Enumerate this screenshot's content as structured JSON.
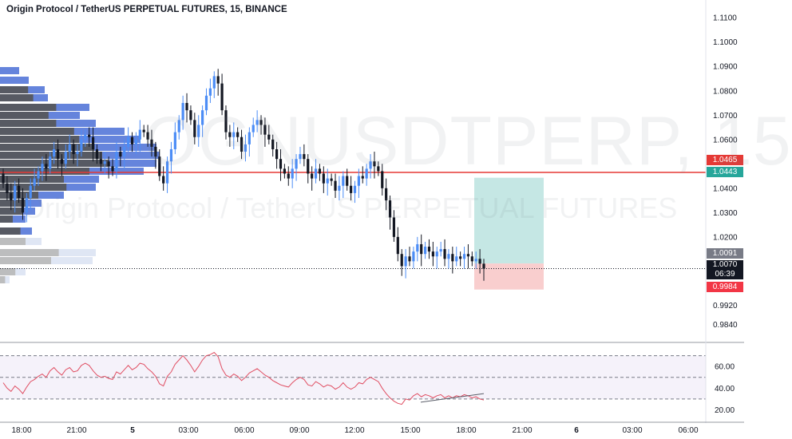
{
  "header": {
    "title": "Origin Protocol / TetherUS PERPETUAL FUTURES, 15, BINANCE"
  },
  "watermark": {
    "symbol": "OGNUSDTPERP, 15",
    "name": "Origin Protocol / TetherUS PERPETUAL FUTURES"
  },
  "colors": {
    "up_candle": "#4c8df6",
    "down_candle": "#131722",
    "resistance_line": "#e53935",
    "profit_zone": "#b2dfdb",
    "loss_zone": "#f8c6c6",
    "rsi_line": "#e04e62",
    "volume_profile_blue": "#4a6fd6",
    "volume_profile_grey": "#555555"
  },
  "price_axis": {
    "ticks": [
      "1.1100",
      "1.1000",
      "1.0900",
      "1.0800",
      "1.0700",
      "1.0600",
      "1.0400",
      "1.0300",
      "1.0200",
      "0.9920",
      "0.9840"
    ],
    "labels": {
      "resistance": {
        "value": "1.0465",
        "color": "#e53935"
      },
      "target": {
        "value": "1.0443",
        "color": "#26a69a"
      },
      "entry": {
        "value": "1.0091",
        "color": "#787b86"
      },
      "last": {
        "value": "1.0070",
        "countdown": "06:39",
        "color": "#131722"
      },
      "stop": {
        "value": "0.9984",
        "color": "#f23645"
      }
    }
  },
  "time_axis": {
    "ticks": [
      "18:00",
      "21:00",
      "5",
      "03:00",
      "06:00",
      "09:00",
      "12:00",
      "15:00",
      "18:00",
      "21:00",
      "6",
      "03:00",
      "06:00"
    ]
  },
  "rsi": {
    "ticks": [
      "60.00",
      "40.00",
      "20.00"
    ],
    "upper": 70,
    "middle": 50,
    "lower": 30
  },
  "chart_data": {
    "type": "candlestick",
    "symbol": "OGNUSDTPERP",
    "interval": "15",
    "exchange": "BINANCE",
    "ylim": [
      0.978,
      1.114
    ],
    "close_series": [
      1.042,
      1.038,
      1.035,
      1.041,
      1.036,
      1.03,
      1.036,
      1.041,
      1.044,
      1.047,
      1.05,
      1.048,
      1.053,
      1.056,
      1.052,
      1.05,
      1.055,
      1.058,
      1.054,
      1.055,
      1.06,
      1.062,
      1.061,
      1.056,
      1.052,
      1.05,
      1.051,
      1.049,
      1.047,
      1.055,
      1.053,
      1.057,
      1.061,
      1.058,
      1.06,
      1.064,
      1.063,
      1.06,
      1.057,
      1.053,
      1.045,
      1.042,
      1.051,
      1.056,
      1.063,
      1.068,
      1.075,
      1.072,
      1.068,
      1.061,
      1.066,
      1.072,
      1.078,
      1.081,
      1.086,
      1.083,
      1.072,
      1.063,
      1.061,
      1.063,
      1.061,
      1.055,
      1.058,
      1.063,
      1.066,
      1.068,
      1.066,
      1.062,
      1.06,
      1.056,
      1.052,
      1.048,
      1.046,
      1.044,
      1.048,
      1.052,
      1.054,
      1.052,
      1.046,
      1.044,
      1.048,
      1.046,
      1.042,
      1.044,
      1.043,
      1.039,
      1.041,
      1.045,
      1.041,
      1.038,
      1.041,
      1.045,
      1.044,
      1.048,
      1.051,
      1.049,
      1.047,
      1.04,
      1.035,
      1.028,
      1.02,
      1.013,
      1.008,
      1.012,
      1.01,
      1.014,
      1.017,
      1.013,
      1.016,
      1.014,
      1.012,
      1.014,
      1.015,
      1.011,
      1.013,
      1.01,
      1.012,
      1.011,
      1.013,
      1.012,
      1.01,
      1.011,
      1.009,
      1.007
    ],
    "levels": {
      "resistance": 1.0465,
      "target": 1.0443,
      "entry": 1.0091,
      "last": 1.007,
      "stop": 0.9984
    },
    "rsi_series": [
      45,
      40,
      37,
      42,
      39,
      35,
      41,
      46,
      48,
      51,
      53,
      50,
      56,
      59,
      55,
      52,
      57,
      59,
      55,
      56,
      61,
      63,
      61,
      56,
      52,
      50,
      51,
      49,
      48,
      55,
      53,
      57,
      61,
      57,
      59,
      63,
      62,
      58,
      55,
      51,
      44,
      42,
      51,
      55,
      62,
      66,
      70,
      66,
      61,
      55,
      60,
      66,
      70,
      71,
      73,
      69,
      58,
      52,
      50,
      53,
      51,
      47,
      50,
      54,
      56,
      58,
      55,
      52,
      50,
      47,
      45,
      43,
      42,
      41,
      45,
      48,
      50,
      48,
      43,
      42,
      46,
      44,
      41,
      43,
      42,
      39,
      41,
      45,
      41,
      39,
      41,
      45,
      44,
      48,
      50,
      48,
      46,
      40,
      35,
      31,
      28,
      26,
      25,
      30,
      29,
      33,
      35,
      32,
      34,
      33,
      31,
      33,
      34,
      31,
      33,
      31,
      33,
      32,
      34,
      33,
      31,
      32,
      30,
      29
    ],
    "rsi_ylim": [
      10,
      80
    ]
  }
}
